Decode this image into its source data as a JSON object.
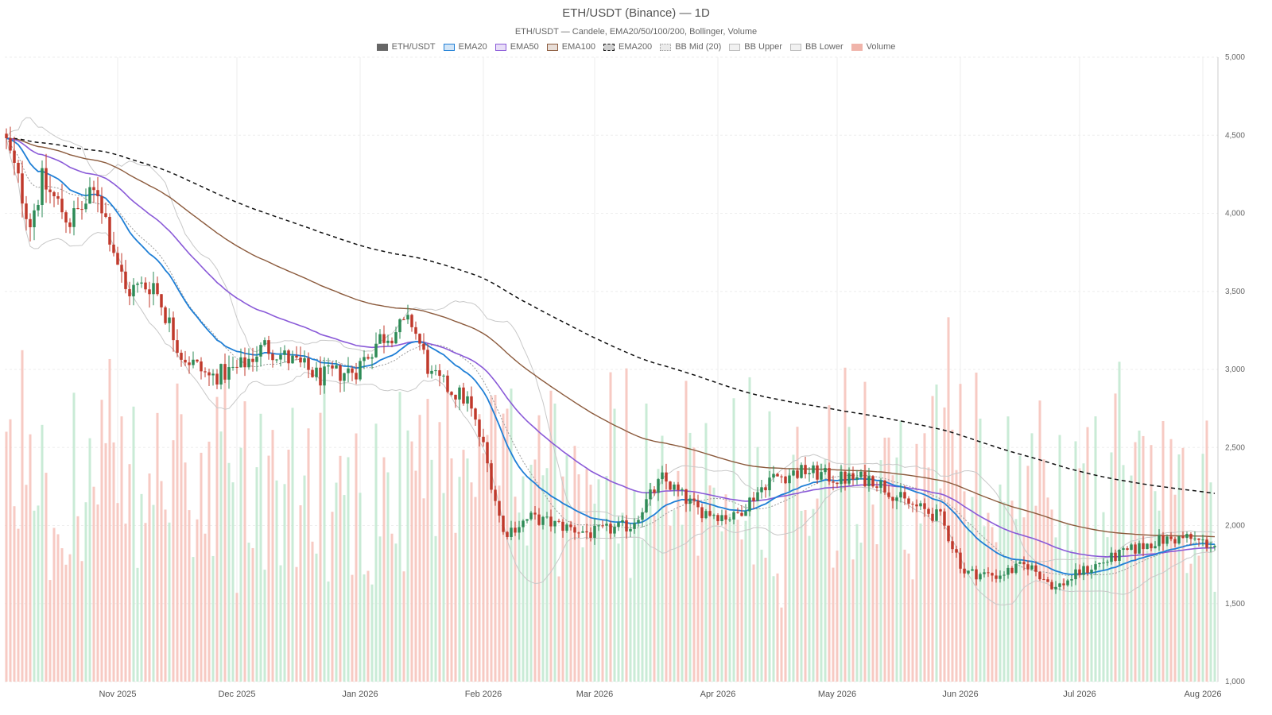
{
  "chart_data": {
    "type": "candlestick",
    "title": "ETH/USDT (Binance) — 1D",
    "subtitle": "ETH/USDT — Candele, EMA20/50/100/200, Bollinger, Volume",
    "legend": [
      {
        "label": "ETH/USDT",
        "color": "#666666",
        "style": "solid"
      },
      {
        "label": "EMA20",
        "color": "#1f7fd6",
        "style": "solid"
      },
      {
        "label": "EMA50",
        "color": "#8a5ad8",
        "style": "solid"
      },
      {
        "label": "EMA100",
        "color": "#8b5a3c",
        "style": "solid"
      },
      {
        "label": "EMA200",
        "color": "#111111",
        "style": "dashed"
      },
      {
        "label": "BB Mid (20)",
        "color": "#999999",
        "style": "dotted"
      },
      {
        "label": "BB Upper",
        "color": "#bbbbbb",
        "style": "solid"
      },
      {
        "label": "BB Lower",
        "color": "#bbbbbb",
        "style": "solid"
      },
      {
        "label": "Volume",
        "color": "#f0b4aa",
        "style": "solid"
      }
    ],
    "x_ticks": [
      "Nov 2025",
      "Dec 2025",
      "Jan 2026",
      "Feb 2026",
      "Mar 2026",
      "Apr 2026",
      "May 2026",
      "Jun 2026",
      "Jul 2026",
      "Aug 2026"
    ],
    "y_ticks": [
      "5,000",
      "4,500",
      "4,000",
      "3,500",
      "3,000",
      "2,500",
      "2,000",
      "1,500",
      "1,000"
    ],
    "ylim": [
      1000,
      5000
    ],
    "legend_position": "top-center",
    "grid": true,
    "colors": {
      "up": "#2e8b57",
      "down": "#c0392b",
      "volume_up": "#bfe8cf",
      "volume_down": "#f6c1b8"
    },
    "price_anchors": [
      [
        "2025-10-04",
        4450
      ],
      [
        "2025-10-10",
        3950
      ],
      [
        "2025-10-13",
        4200
      ],
      [
        "2025-10-20",
        3950
      ],
      [
        "2025-10-27",
        4150
      ],
      [
        "2025-11-03",
        3500
      ],
      [
        "2025-11-10",
        3550
      ],
      [
        "2025-11-17",
        3100
      ],
      [
        "2025-11-24",
        2950
      ],
      [
        "2025-12-01",
        3000
      ],
      [
        "2025-12-08",
        3150
      ],
      [
        "2025-12-15",
        3050
      ],
      [
        "2025-12-22",
        2950
      ],
      [
        "2025-12-31",
        3000
      ],
      [
        "2026-01-06",
        3200
      ],
      [
        "2026-01-14",
        3300
      ],
      [
        "2026-01-19",
        2950
      ],
      [
        "2026-01-28",
        2800
      ],
      [
        "2026-02-01",
        2500
      ],
      [
        "2026-02-06",
        1950
      ],
      [
        "2026-02-13",
        2050
      ],
      [
        "2026-02-20",
        2000
      ],
      [
        "2026-02-28",
        1950
      ],
      [
        "2026-03-10",
        2000
      ],
      [
        "2026-03-18",
        2300
      ],
      [
        "2026-03-27",
        2100
      ],
      [
        "2026-04-05",
        2050
      ],
      [
        "2026-04-14",
        2300
      ],
      [
        "2026-04-23",
        2350
      ],
      [
        "2026-05-01",
        2300
      ],
      [
        "2026-05-10",
        2300
      ],
      [
        "2026-05-18",
        2150
      ],
      [
        "2026-05-27",
        2050
      ],
      [
        "2026-06-02",
        1700
      ],
      [
        "2026-06-10",
        1680
      ],
      [
        "2026-06-18",
        1750
      ],
      [
        "2026-06-25",
        1600
      ],
      [
        "2026-07-01",
        1700
      ],
      [
        "2026-07-10",
        1800
      ],
      [
        "2026-07-20",
        1900
      ],
      [
        "2026-07-28",
        1920
      ],
      [
        "2026-08-04",
        1870
      ]
    ]
  }
}
